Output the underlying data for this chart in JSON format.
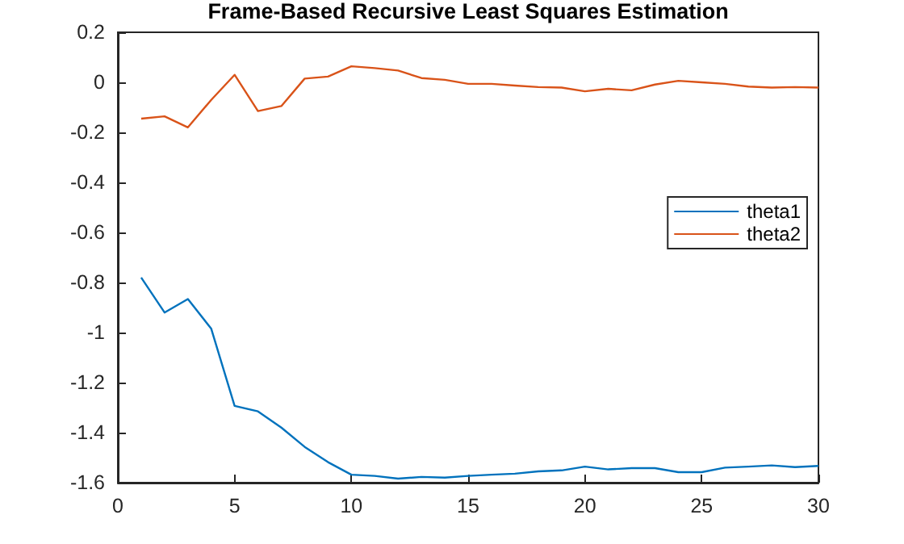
{
  "chart_data": {
    "type": "line",
    "title": "Frame-Based Recursive Least Squares Estimation",
    "x": [
      1,
      2,
      3,
      4,
      5,
      6,
      7,
      8,
      9,
      10,
      11,
      12,
      13,
      14,
      15,
      16,
      17,
      18,
      19,
      20,
      21,
      22,
      23,
      24,
      25,
      26,
      27,
      28,
      29,
      30
    ],
    "series": [
      {
        "name": "theta1",
        "color": "#0072bd",
        "values": [
          -0.78,
          -0.92,
          -0.866,
          -0.985,
          -1.293,
          -1.315,
          -1.38,
          -1.457,
          -1.518,
          -1.568,
          -1.573,
          -1.584,
          -1.577,
          -1.58,
          -1.573,
          -1.568,
          -1.564,
          -1.555,
          -1.551,
          -1.536,
          -1.547,
          -1.542,
          -1.542,
          -1.558,
          -1.558,
          -1.54,
          -1.536,
          -1.531,
          -1.538,
          -1.533
        ]
      },
      {
        "name": "theta2",
        "color": "#d95319",
        "values": [
          -0.145,
          -0.136,
          -0.18,
          -0.07,
          0.03,
          -0.115,
          -0.095,
          0.015,
          0.023,
          0.064,
          0.057,
          0.047,
          0.017,
          0.01,
          -0.006,
          -0.006,
          -0.013,
          -0.019,
          -0.021,
          -0.036,
          -0.026,
          -0.032,
          -0.009,
          0.006,
          0,
          -0.006,
          -0.017,
          -0.021,
          -0.019,
          -0.021
        ]
      }
    ],
    "xlim": [
      0,
      30
    ],
    "xticks": [
      0,
      5,
      10,
      15,
      20,
      25,
      30
    ],
    "ylim": [
      -1.6,
      0.2
    ],
    "yticks": [
      -1.6,
      -1.4,
      -1.2,
      -1,
      -0.8,
      -0.6,
      -0.4,
      -0.2,
      0,
      0.2
    ],
    "grid": false,
    "legend": "right",
    "marker": "none",
    "line_style": "solid"
  }
}
